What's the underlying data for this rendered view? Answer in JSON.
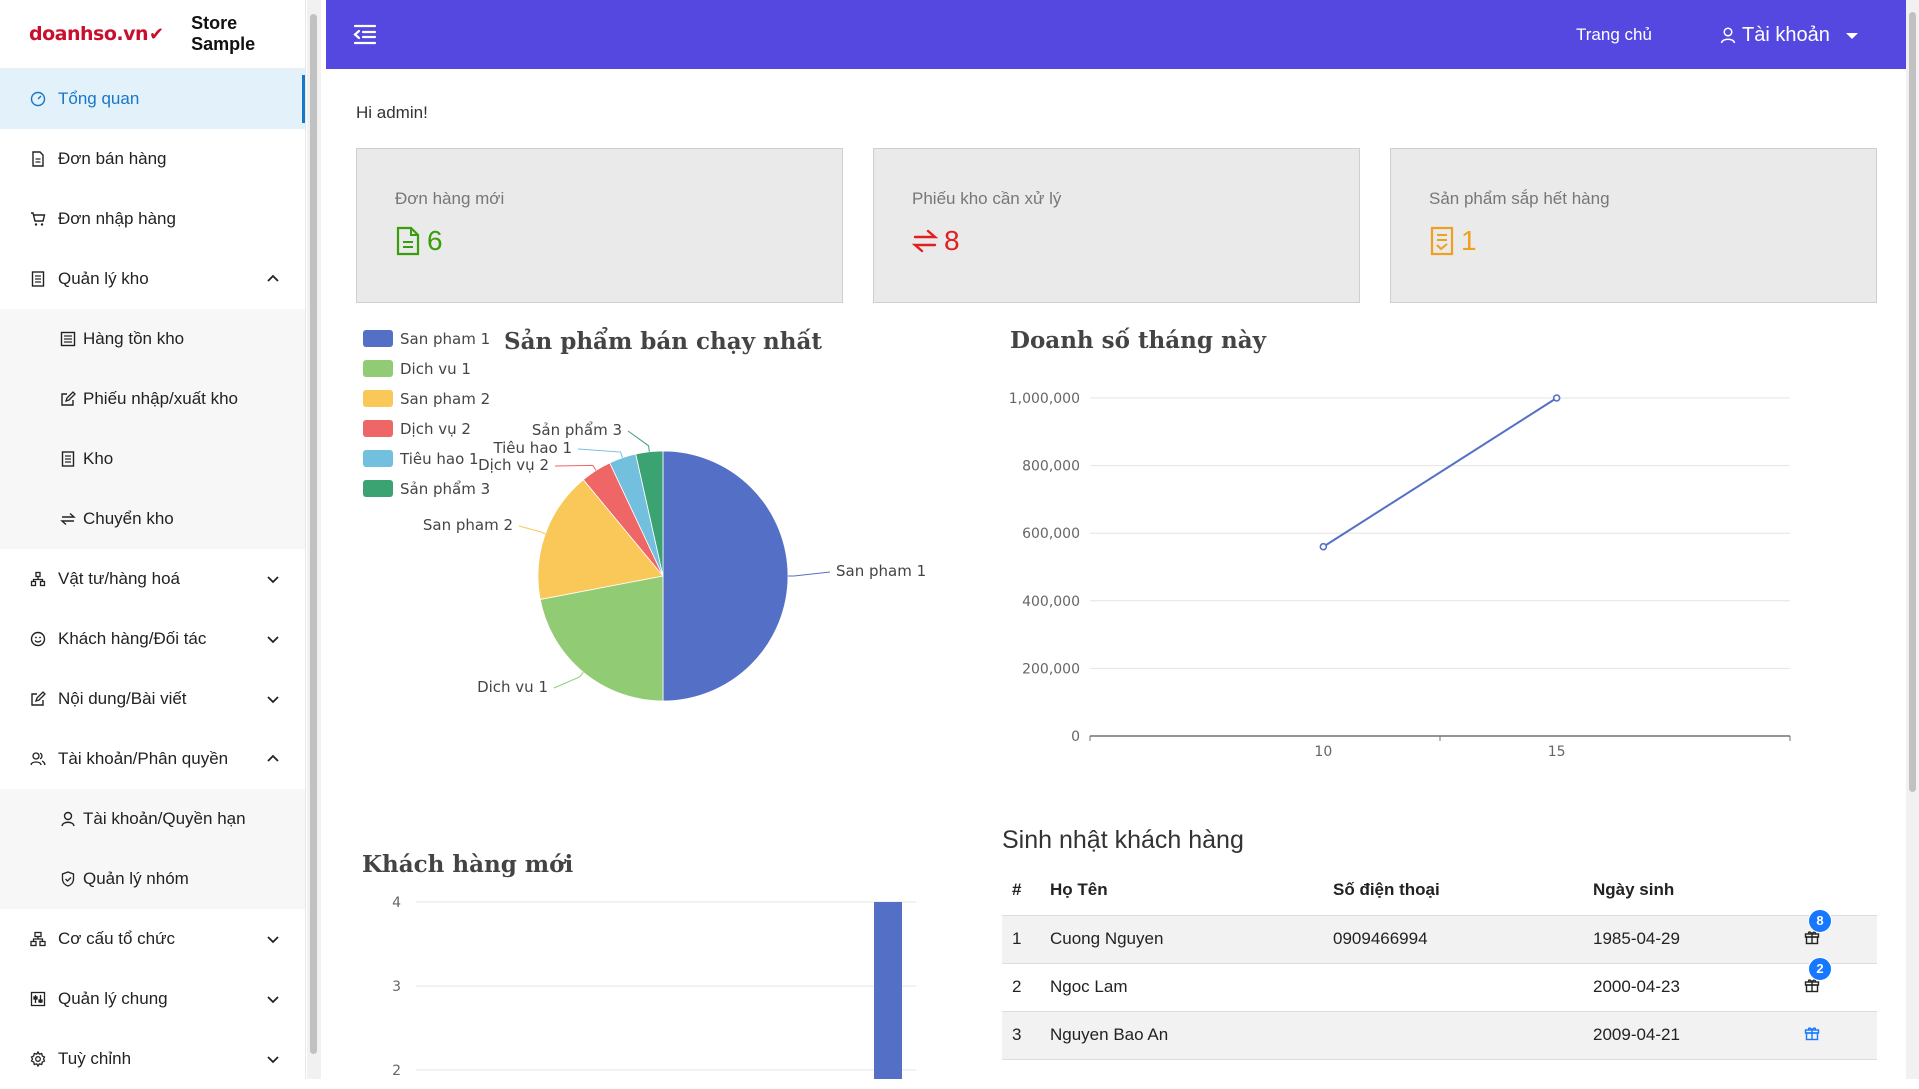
{
  "brand": {
    "logo_text": "doanhso.vn",
    "store_name": "Store Sample"
  },
  "sidebar": {
    "items": [
      {
        "label": "Tổng quan",
        "icon": "dashboard-icon",
        "active": true
      },
      {
        "label": "Đơn bán hàng",
        "icon": "document-icon"
      },
      {
        "label": "Đơn nhập hàng",
        "icon": "cart-icon"
      },
      {
        "label": "Quản lý kho",
        "icon": "warehouse-icon",
        "expanded": true
      },
      {
        "label": "Hàng tồn kho",
        "icon": "inventory-icon",
        "sub": true
      },
      {
        "label": "Phiếu nhập/xuất kho",
        "icon": "edit-icon",
        "sub": true
      },
      {
        "label": "Kho",
        "icon": "warehouse-icon",
        "sub": true
      },
      {
        "label": "Chuyển kho",
        "icon": "transfer-icon",
        "sub": true
      },
      {
        "label": "Vật tư/hàng hoá",
        "icon": "cluster-icon",
        "expanded": false
      },
      {
        "label": "Khách hàng/Đối tác",
        "icon": "smile-icon",
        "expanded": false
      },
      {
        "label": "Nội dung/Bài viết",
        "icon": "edit-icon",
        "expanded": false
      },
      {
        "label": "Tài khoản/Phân quyền",
        "icon": "users-icon",
        "expanded": true
      },
      {
        "label": "Tài khoản/Quyền hạn",
        "icon": "user-icon",
        "sub": true
      },
      {
        "label": "Quản lý nhóm",
        "icon": "shield-icon",
        "sub": true
      },
      {
        "label": "Cơ cấu tổ chức",
        "icon": "org-icon",
        "expanded": false
      },
      {
        "label": "Quản lý chung",
        "icon": "settings-panel-icon",
        "expanded": false
      },
      {
        "label": "Tuỳ chỉnh",
        "icon": "gear-icon",
        "expanded": false
      }
    ]
  },
  "header": {
    "home_label": "Trang chủ",
    "account_label": "Tài khoản"
  },
  "greeting": "Hi admin!",
  "cards": [
    {
      "label": "Đơn hàng mới",
      "value": "6",
      "color": "#389e0d",
      "icon": "file-icon"
    },
    {
      "label": "Phiếu kho cần xử lý",
      "value": "8",
      "color": "#e02020",
      "icon": "swap-icon"
    },
    {
      "label": "Sản phẩm sắp hết hàng",
      "value": "1",
      "color": "#f0a020",
      "icon": "list-doc-icon"
    }
  ],
  "colors": {
    "accent": "#5548e0",
    "active_bg": "#e3f1fb",
    "active_text": "#1677c9"
  },
  "chart_data": [
    {
      "type": "pie",
      "title": "Sản phẩm bán chạy nhất",
      "legend_position": "top-left",
      "categories": [
        "San pham 1",
        "Dich vu 1",
        "San pham 2",
        "Dịch vụ 2",
        "Tiêu hao 1",
        "Sản phẩm 3"
      ],
      "values": [
        50,
        22,
        17,
        4,
        3.5,
        3.5
      ],
      "colors": [
        "#5470c6",
        "#91cc75",
        "#fac858",
        "#ee6666",
        "#73c0de",
        "#3ba272"
      ]
    },
    {
      "type": "line",
      "title": "Doanh số tháng này",
      "x": [
        10,
        15
      ],
      "xlim": [
        5,
        20
      ],
      "x_ticks": [
        "10",
        "15"
      ],
      "y": [
        560000,
        1000000
      ],
      "ylim": [
        0,
        1000000
      ],
      "y_ticks": [
        "0",
        "200,000",
        "400,000",
        "600,000",
        "800,000",
        "1,000,000"
      ],
      "grid": true,
      "color": "#5470c6"
    },
    {
      "type": "bar",
      "title": "Khách hàng mới",
      "y_ticks": [
        "2",
        "3",
        "4"
      ],
      "ylim": [
        0,
        4
      ],
      "values": [
        4
      ],
      "color": "#5470c6",
      "grid": true
    }
  ],
  "birthdays": {
    "title": "Sinh nhật khách hàng",
    "columns": [
      "#",
      "Họ Tên",
      "Số điện thoại",
      "Ngày sinh"
    ],
    "rows": [
      {
        "no": "1",
        "name": "Cuong Nguyen",
        "phone": "0909466994",
        "dob": "1985-04-29",
        "badge": "8"
      },
      {
        "no": "2",
        "name": "Ngoc Lam",
        "phone": "",
        "dob": "2000-04-23",
        "badge": "2"
      },
      {
        "no": "3",
        "name": "Nguyen Bao An",
        "phone": "",
        "dob": "2009-04-21",
        "badge": ""
      }
    ]
  }
}
